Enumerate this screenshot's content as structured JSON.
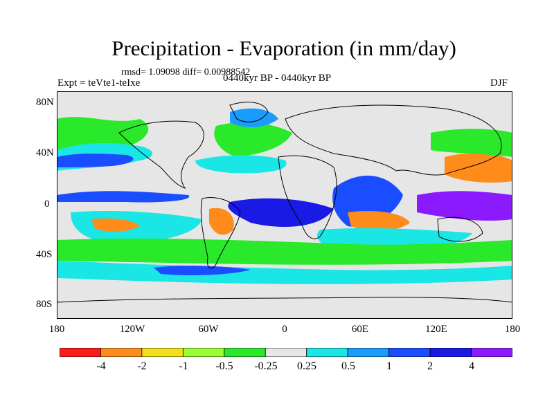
{
  "header": {
    "title": "Precipitation - Evaporation (in mm/day)",
    "stats": "rmsd= 1.09098 diff= 0.00988542",
    "experiment": "Expt = teVte1-teIxe",
    "period": "0440kyr BP - 0440kyr BP",
    "season": "DJF"
  },
  "axes": {
    "y_ticks": [
      "80N",
      "40N",
      "0",
      "40S",
      "80S"
    ],
    "x_ticks": [
      "180",
      "120W",
      "60W",
      "0",
      "60E",
      "120E",
      "180"
    ]
  },
  "colorbar": {
    "labels": [
      "-4",
      "-2",
      "-1",
      "-0.5",
      "-0.25",
      "0.25",
      "0.5",
      "1",
      "2",
      "4"
    ],
    "colors": [
      "#ff1a1a",
      "#ff8c1a",
      "#f2e01a",
      "#99ff33",
      "#2ae82a",
      "#e6e6e6",
      "#1ae6e6",
      "#1a9cff",
      "#1a4dff",
      "#1a1ae6",
      "#8c1aff"
    ]
  },
  "map": {
    "background_color": "#e6e6e6",
    "coastline_color": "#000000"
  }
}
